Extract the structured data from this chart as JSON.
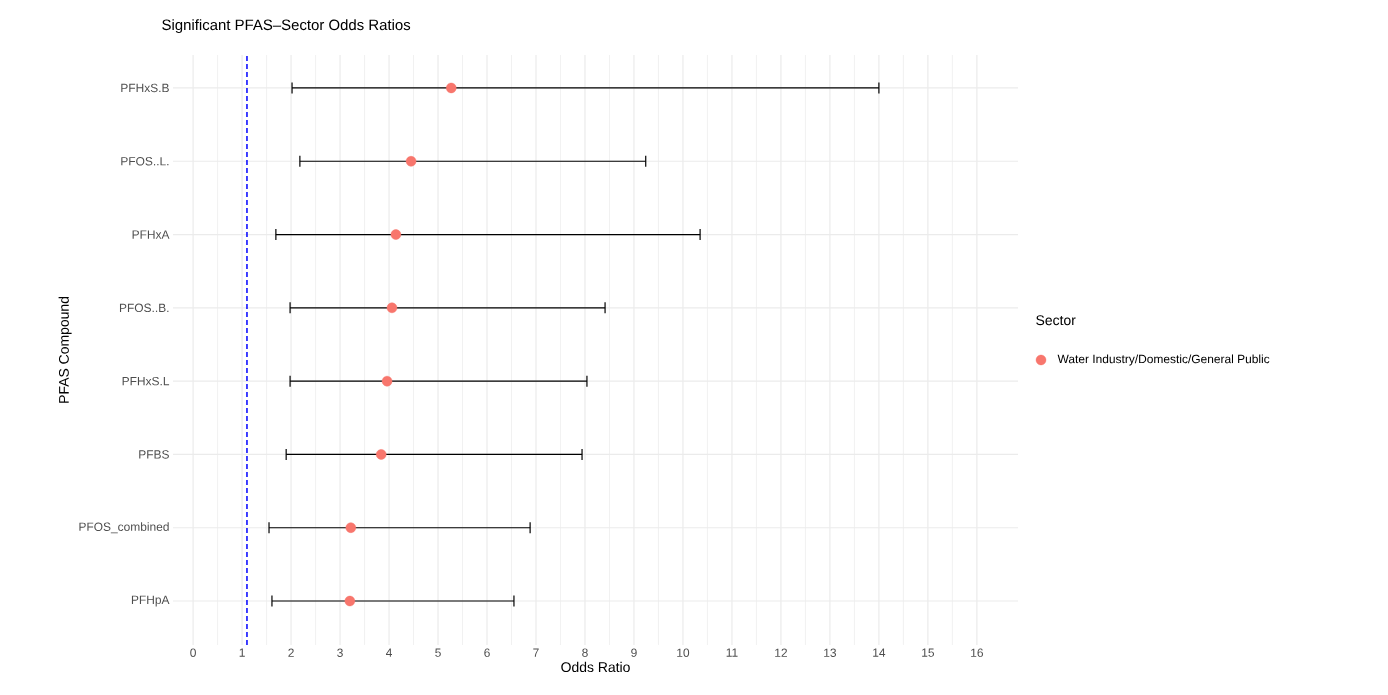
{
  "chart_data": {
    "type": "scatter",
    "orientation": "horizontal",
    "title": "Significant PFAS–Sector Odds Ratios",
    "xlabel": "Odds Ratio",
    "ylabel": "PFAS Compound",
    "legend_title": "Sector",
    "categories": [
      "PFHxS.B",
      "PFOS..L.",
      "PFHxA",
      "PFOS..B.",
      "PFHxS.L",
      "PFBS",
      "PFOS_combined",
      "PFHpA"
    ],
    "series": [
      {
        "name": "Water Industry/Domestic/General Public",
        "color": "#f8766d",
        "values": [
          5.27,
          4.45,
          4.14,
          4.06,
          3.96,
          3.84,
          3.22,
          3.2
        ],
        "errors": [
          [
            2.02,
            14.0
          ],
          [
            2.18,
            9.24
          ],
          [
            1.69,
            10.35
          ],
          [
            1.98,
            8.41
          ],
          [
            1.98,
            8.04
          ],
          [
            1.9,
            7.94
          ],
          [
            1.55,
            6.88
          ],
          [
            1.61,
            6.55
          ]
        ]
      }
    ],
    "xlim": [
      -0.41,
      16.84
    ],
    "xticks": [
      0,
      1,
      2,
      3,
      4,
      5,
      6,
      7,
      8,
      9,
      10,
      11,
      12,
      13,
      14,
      15,
      16
    ],
    "ref_lines": [
      {
        "axis": "x",
        "value": 1.1,
        "color": "#0000ff",
        "line_style": "dashed"
      }
    ],
    "grid": true,
    "legend": "right",
    "marker": "circle"
  }
}
